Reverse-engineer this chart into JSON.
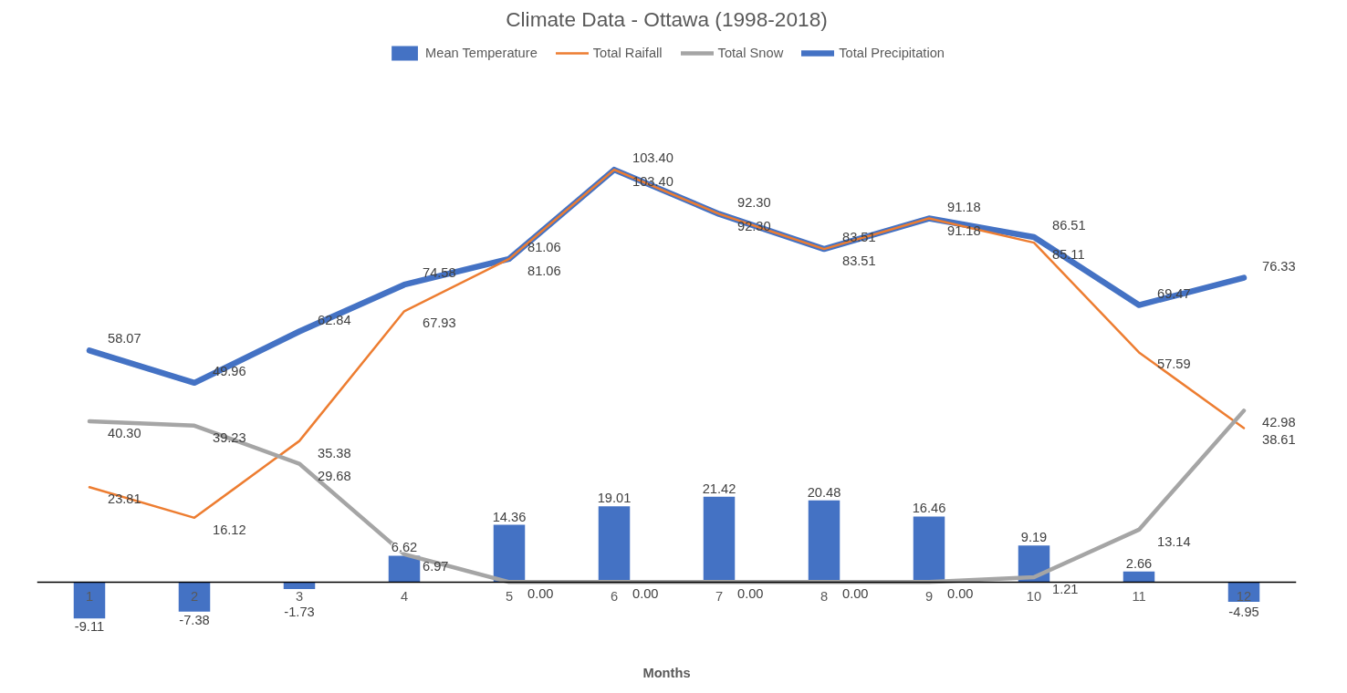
{
  "chart_data": {
    "type": "bar",
    "title": "Climate Data - Ottawa (1998-2018)",
    "xlabel": "Months",
    "categories": [
      "1",
      "2",
      "3",
      "4",
      "5",
      "6",
      "7",
      "8",
      "9",
      "10",
      "11",
      "12"
    ],
    "legend": "top",
    "grid": false,
    "series": [
      {
        "name": "Mean Temperature",
        "color": "#4472c4",
        "values": [
          -9.11,
          -7.38,
          -1.73,
          6.62,
          14.36,
          19.01,
          21.42,
          20.48,
          16.46,
          9.19,
          2.66,
          -4.95
        ],
        "value_labels": [
          "-9.11",
          "-7.38",
          "-1.73",
          "6.62",
          "14.36",
          "19.01",
          "21.42",
          "20.48",
          "16.46",
          "9.19",
          "2.66",
          "-4.95"
        ]
      },
      {
        "name": "Total Raifall",
        "type": "line",
        "color": "#ed7d31",
        "values": [
          23.81,
          16.12,
          35.38,
          67.93,
          81.06,
          103.4,
          92.3,
          83.51,
          91.18,
          85.11,
          57.59,
          38.61
        ],
        "value_labels": [
          "23.81",
          "16.12",
          "35.38",
          "67.93",
          "81.06",
          "103.40",
          "92.30",
          "83.51",
          "91.18",
          "85.11",
          "57.59",
          "38.61"
        ]
      },
      {
        "name": "Total Snow",
        "type": "line",
        "color": "#a5a5a5",
        "values": [
          40.3,
          39.23,
          29.68,
          6.97,
          0.0,
          0.0,
          0.0,
          0.0,
          0.0,
          1.21,
          13.14,
          42.98
        ],
        "value_labels": [
          "40.30",
          "39.23",
          "29.68",
          "6.97",
          "0.00",
          "0.00",
          "0.00",
          "0.00",
          "0.00",
          "1.21",
          "13.14",
          "42.98"
        ]
      },
      {
        "name": "Total Precipitation",
        "type": "line",
        "color": "#4472c4",
        "values": [
          58.07,
          49.96,
          62.84,
          74.58,
          81.06,
          103.4,
          92.3,
          83.51,
          91.18,
          86.51,
          69.47,
          76.33
        ],
        "value_labels": [
          "58.07",
          "49.96",
          "62.84",
          "74.58",
          "81.06",
          "103.40",
          "92.30",
          "83.51",
          "91.18",
          "86.51",
          "69.47",
          "76.33"
        ]
      }
    ]
  }
}
